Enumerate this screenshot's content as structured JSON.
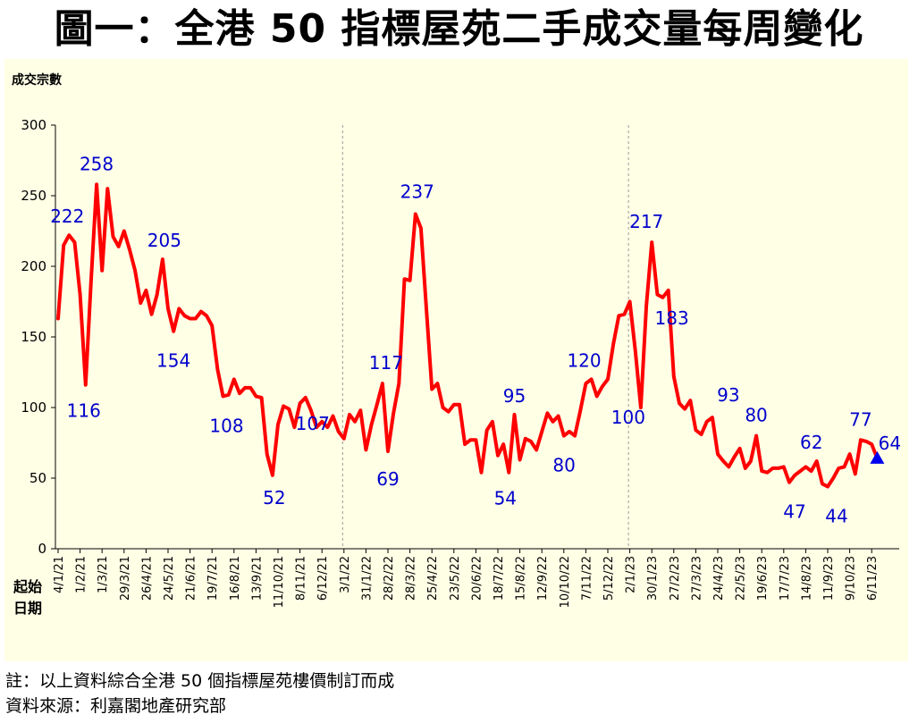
{
  "title": "圖一：全港 50 指標屋苑二手成交量每周變化",
  "notes": {
    "line1": "註：以上資料綜合全港 50 個指標屋苑樓價制訂而成",
    "line2": "資料來源：利嘉閣地產研究部"
  },
  "chart_data": {
    "type": "line",
    "ylabel": "成交宗數",
    "xlabel_line1": "起始",
    "xlabel_line2": "日期",
    "ylim": [
      0,
      300
    ],
    "yticks": [
      0,
      50,
      100,
      150,
      200,
      250,
      300
    ],
    "colors": {
      "line": "#ff0000",
      "labels": "#0000cc",
      "marker": "#0000ee",
      "background": "#ffffe6"
    },
    "x_tick_labels": [
      "4/1/21",
      "1/2/21",
      "1/3/21",
      "29/3/21",
      "26/4/21",
      "24/5/21",
      "21/6/21",
      "19/7/21",
      "16/8/21",
      "13/9/21",
      "11/10/21",
      "8/11/21",
      "6/12/21",
      "3/1/22",
      "31/1/22",
      "28/2/22",
      "28/3/22",
      "25/4/22",
      "23/5/22",
      "20/6/22",
      "18/7/22",
      "15/8/22",
      "12/9/22",
      "10/10/22",
      "7/11/22",
      "5/12/22",
      "2/1/23",
      "30/1/23",
      "27/2/23",
      "27/3/23",
      "24/4/23",
      "22/5/23",
      "19/6/23",
      "17/7/23",
      "14/8/23",
      "11/9/23",
      "9/10/23",
      "6/11/23"
    ],
    "year_dividers": [
      "3/1/22",
      "2/1/23"
    ],
    "series": [
      {
        "values": [
          163,
          215,
          222,
          217,
          180,
          116,
          190,
          258,
          197,
          255,
          221,
          214,
          225,
          212,
          197,
          174,
          183,
          166,
          180,
          205,
          170,
          154,
          170,
          165,
          163,
          163,
          168,
          165,
          158,
          127,
          108,
          109,
          120,
          110,
          114,
          114,
          108,
          107,
          67,
          52,
          88,
          101,
          99,
          86,
          103,
          107,
          98,
          86,
          90,
          86,
          94,
          83,
          78,
          95,
          90,
          98,
          70,
          88,
          102,
          117,
          69,
          96,
          117,
          191,
          190,
          237,
          227,
          169,
          113,
          117,
          100,
          97,
          102,
          102,
          74,
          77,
          77,
          54,
          84,
          90,
          66,
          74,
          54,
          95,
          63,
          78,
          76,
          70,
          83,
          96,
          90,
          94,
          80,
          83,
          80,
          98,
          117,
          120,
          108,
          115,
          120,
          145,
          165,
          166,
          175,
          140,
          100,
          172,
          217,
          180,
          178,
          183,
          122,
          103,
          99,
          105,
          84,
          81,
          90,
          93,
          67,
          62,
          58,
          65,
          71,
          57,
          62,
          80,
          55,
          54,
          57,
          57,
          58,
          47,
          52,
          55,
          58,
          55,
          62,
          46,
          44,
          50,
          57,
          58,
          67,
          53,
          77,
          76,
          74,
          64
        ]
      }
    ],
    "annotations": [
      {
        "text": "222",
        "x_index": 2,
        "value": 222
      },
      {
        "text": "116",
        "x_index": 5,
        "value": 116
      },
      {
        "text": "258",
        "x_index": 7,
        "value": 258
      },
      {
        "text": "205",
        "x_index": 19,
        "value": 205
      },
      {
        "text": "154",
        "x_index": 21,
        "value": 154
      },
      {
        "text": "108",
        "x_index": 30,
        "value": 108
      },
      {
        "text": "52",
        "x_index": 39,
        "value": 52
      },
      {
        "text": "107",
        "x_index": 45,
        "value": 107
      },
      {
        "text": "117",
        "x_index": 59,
        "value": 117
      },
      {
        "text": "69",
        "x_index": 60,
        "value": 69
      },
      {
        "text": "237",
        "x_index": 65,
        "value": 237
      },
      {
        "text": "54",
        "x_index": 82,
        "value": 54
      },
      {
        "text": "95",
        "x_index": 83,
        "value": 95
      },
      {
        "text": "80",
        "x_index": 94,
        "value": 80
      },
      {
        "text": "120",
        "x_index": 97,
        "value": 120
      },
      {
        "text": "100",
        "x_index": 106,
        "value": 100
      },
      {
        "text": "217",
        "x_index": 108,
        "value": 217
      },
      {
        "text": "183",
        "x_index": 111,
        "value": 183
      },
      {
        "text": "93",
        "x_index": 119,
        "value": 93
      },
      {
        "text": "80",
        "x_index": 127,
        "value": 80
      },
      {
        "text": "47",
        "x_index": 133,
        "value": 47
      },
      {
        "text": "62",
        "x_index": 138,
        "value": 62
      },
      {
        "text": "44",
        "x_index": 140,
        "value": 44
      },
      {
        "text": "77",
        "x_index": 146,
        "value": 77
      },
      {
        "text": "64",
        "x_index": 149,
        "value": 64
      }
    ]
  }
}
